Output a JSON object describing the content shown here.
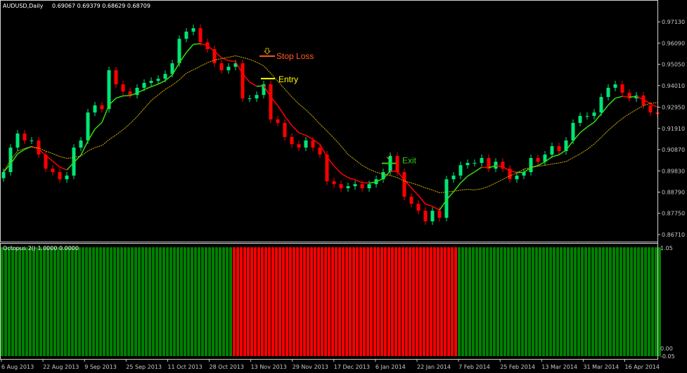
{
  "header": {
    "symbol_label": "AUDUSD,Daily",
    "ohlc_text": "0.69067 0.69379 0.68629 0.68709"
  },
  "indicator": {
    "label": "Octopus 2() 1.0000 0.0000",
    "axis_top": "1.05",
    "axis_bottom_a": "0.00",
    "axis_bottom_b": "-0.05"
  },
  "annotations": {
    "stop_loss": "Stop Loss",
    "entry": "Entry",
    "exit": "Exit"
  },
  "colors": {
    "bull_candle": "#00e676",
    "bear_candle": "#ff0000",
    "ma_up": "#33dd11",
    "ma_down": "#ff0000",
    "ma_slow": "#d4b000",
    "indicator_bull": "#008000",
    "indicator_bear": "#ff0000",
    "stop_loss": "#ff5a1e",
    "entry": "#ffff00",
    "exit": "#33cc11"
  },
  "chart_data": {
    "type": "candlestick",
    "title": "AUDUSD,Daily",
    "ylim": [
      0.8633,
      0.982
    ],
    "y_ticks": [
      "0.97130",
      "0.96090",
      "0.95050",
      "0.94010",
      "0.92950",
      "0.91910",
      "0.90870",
      "0.89830",
      "0.88790",
      "0.87750",
      "0.86710"
    ],
    "x_ticks": [
      "6 Aug 2013",
      "22 Aug 2013",
      "9 Sep 2013",
      "25 Sep 2013",
      "11 Oct 2013",
      "28 Oct 2013",
      "13 Nov 2013",
      "29 Nov 2013",
      "17 Dec 2013",
      "6 Jan 2014",
      "22 Jan 2014",
      "7 Feb 2014",
      "25 Feb 2014",
      "13 Mar 2014",
      "31 Mar 2014",
      "16 Apr 2014"
    ],
    "grid": false,
    "closes": [
      0.8977,
      0.9097,
      0.9166,
      0.9132,
      0.9132,
      0.9063,
      0.8994,
      0.8977,
      0.8942,
      0.896,
      0.9097,
      0.9132,
      0.9269,
      0.9304,
      0.9286,
      0.9476,
      0.9407,
      0.9372,
      0.9355,
      0.939,
      0.9414,
      0.9424,
      0.9434,
      0.9458,
      0.951,
      0.963,
      0.9665,
      0.9682,
      0.9613,
      0.9579,
      0.951,
      0.9476,
      0.9493,
      0.951,
      0.9338,
      0.9338,
      0.9355,
      0.9407,
      0.9235,
      0.9218,
      0.9149,
      0.9114,
      0.9097,
      0.9132,
      0.9097,
      0.9063,
      0.8932,
      0.8918,
      0.8898,
      0.8908,
      0.8918,
      0.8898,
      0.8918,
      0.8942,
      0.8977,
      0.9056,
      0.8977,
      0.8856,
      0.8822,
      0.8788,
      0.8736,
      0.8788,
      0.8753,
      0.8942,
      0.896,
      0.9011,
      0.9022,
      0.9022,
      0.9046,
      0.8994,
      0.9028,
      0.8994,
      0.8942,
      0.896,
      0.8977,
      0.9046,
      0.9028,
      0.9063,
      0.9104,
      0.908,
      0.9132,
      0.9218,
      0.9252,
      0.9252,
      0.9269,
      0.9345,
      0.939,
      0.9407,
      0.9366,
      0.9338,
      0.9352,
      0.9304,
      0.9269,
      0.9262
    ],
    "indicator_signal": [
      1,
      1,
      1,
      1,
      1,
      1,
      1,
      1,
      1,
      1,
      1,
      1,
      1,
      1,
      1,
      1,
      1,
      1,
      1,
      1,
      1,
      1,
      1,
      1,
      1,
      1,
      1,
      1,
      1,
      1,
      1,
      1,
      1,
      0,
      0,
      0,
      0,
      0,
      0,
      0,
      0,
      0,
      0,
      0,
      0,
      0,
      0,
      0,
      0,
      0,
      0,
      0,
      0,
      0,
      0,
      0,
      0,
      0,
      0,
      0,
      0,
      0,
      0,
      0,
      0,
      1,
      1,
      1,
      1,
      1,
      1,
      1,
      1,
      1,
      1,
      1,
      1,
      1,
      1,
      1,
      1,
      1,
      1,
      1,
      1,
      1,
      1,
      1,
      1,
      1,
      1,
      1,
      1,
      1
    ],
    "stop_loss_price": 0.9545,
    "entry_price": 0.9435,
    "exit_price": 0.902
  }
}
